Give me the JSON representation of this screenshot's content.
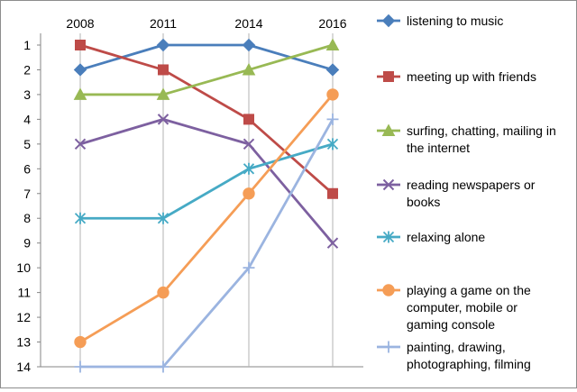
{
  "chart_data": {
    "type": "line",
    "y_axis": "rank",
    "y_reversed": true,
    "ylim": [
      1,
      14
    ],
    "x": [
      "2008",
      "2011",
      "2014",
      "2016"
    ],
    "y_ticks": [
      "1",
      "2",
      "3",
      "4",
      "5",
      "6",
      "7",
      "8",
      "9",
      "10",
      "11",
      "12",
      "13",
      "14"
    ],
    "grid": "vertical",
    "legend_position": "right",
    "series": [
      {
        "name": "listening to music",
        "legend_lines": [
          "listening to music"
        ],
        "values": [
          2,
          1,
          1,
          2
        ],
        "color": "#4a7ebb",
        "marker": "diamond"
      },
      {
        "name": "meeting up with friends",
        "legend_lines": [
          "meeting up with friends"
        ],
        "values": [
          1,
          2,
          4,
          7
        ],
        "color": "#be4b48",
        "marker": "square"
      },
      {
        "name": "surfing, chatting, mailing in the internet",
        "legend_lines": [
          "surfing, chatting, mailing in",
          "the internet"
        ],
        "values": [
          3,
          3,
          2,
          1
        ],
        "color": "#98b954",
        "marker": "triangle"
      },
      {
        "name": "reading newspapers or books",
        "legend_lines": [
          "reading newspapers or",
          "books"
        ],
        "values": [
          5,
          4,
          5,
          9
        ],
        "color": "#7d60a0",
        "marker": "x"
      },
      {
        "name": "relaxing alone",
        "legend_lines": [
          "relaxing alone"
        ],
        "values": [
          8,
          8,
          6,
          5
        ],
        "color": "#46aac5",
        "marker": "asterisk"
      },
      {
        "name": "playing a game on the computer, mobile or gaming console",
        "legend_lines": [
          "playing a game on the",
          "computer, mobile or",
          "gaming console"
        ],
        "values": [
          13,
          11,
          7,
          3
        ],
        "color": "#f59d56",
        "marker": "circle"
      },
      {
        "name": "painting, drawing, photographing, filming",
        "legend_lines": [
          "painting, drawing,",
          "photographing, filming"
        ],
        "values": [
          14,
          14,
          10,
          4
        ],
        "color": "#9bb4e0",
        "marker": "plus"
      }
    ]
  }
}
